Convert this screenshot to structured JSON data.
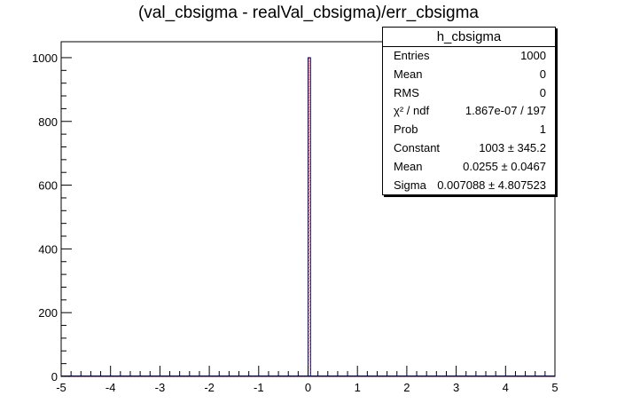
{
  "chart_data": {
    "type": "bar",
    "title": "(val_cbsigma - realVal_cbsigma)/err_cbsigma",
    "xlabel": "",
    "ylabel": "",
    "xlim": [
      -5,
      5
    ],
    "ylim": [
      0,
      1050
    ],
    "x_ticks": [
      "-5",
      "-4",
      "-3",
      "-2",
      "-1",
      "0",
      "1",
      "2",
      "3",
      "4",
      "5"
    ],
    "y_ticks": [
      "0",
      "200",
      "400",
      "600",
      "800",
      "1000"
    ],
    "bins": 200,
    "peak_bin": {
      "x_low": 0.0,
      "x_high": 0.05,
      "value": 1000
    },
    "fit_curve": {
      "type": "gaussian",
      "constant": 1003,
      "mean": 0.0255,
      "sigma": 0.007088,
      "color": "#ff0000"
    },
    "histogram_color": "#000080",
    "grid": false,
    "legend": "top-right"
  },
  "stats_box": {
    "title": "h_cbsigma",
    "rows": [
      {
        "label": "Entries",
        "value": "1000"
      },
      {
        "label": "Mean",
        "value": "0"
      },
      {
        "label": "RMS",
        "value": "0"
      },
      {
        "label": "χ² / ndf",
        "value": "1.867e-07 / 197"
      },
      {
        "label": "Prob",
        "value": "1"
      },
      {
        "label": "Constant",
        "value": "1003 ± 345.2"
      },
      {
        "label": "Mean",
        "value": "0.0255 ± 0.0467"
      },
      {
        "label": "Sigma",
        "value": "0.007088 ± 4.807523"
      }
    ]
  }
}
